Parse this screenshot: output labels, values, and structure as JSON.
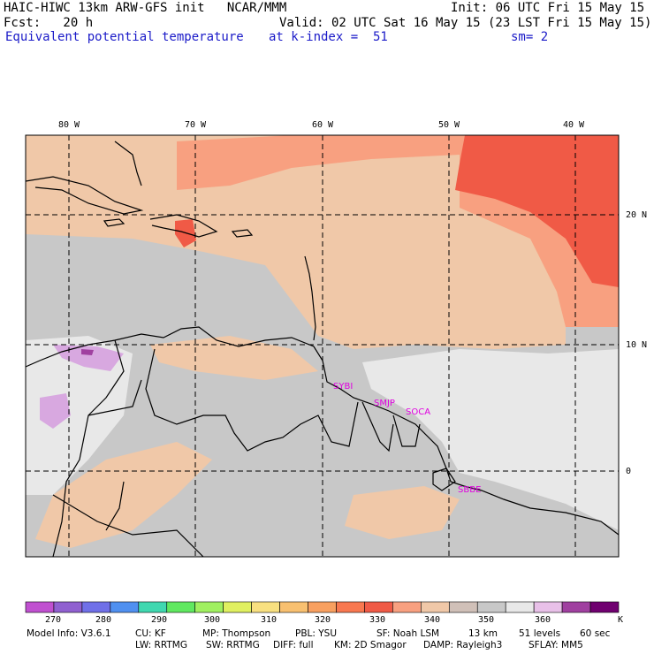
{
  "header": {
    "line1_left": "HAIC-HIWC 13km ARW-GFS init   NCAR/MMM",
    "line1_right": "Init: 06 UTC Fri 15 May 15",
    "line2_left": "Fcst:   20 h",
    "line2_right": "Valid: 02 UTC Sat 16 May 15 (23 LST Fri 15 May 15)",
    "line3_field": "Equivalent potential temperature",
    "line3_level": "at k-index =  51",
    "line3_smooth": "sm= 2"
  },
  "map": {
    "lon_labels": [
      "80 W",
      "70 W",
      "60 W",
      "50 W",
      "40 W"
    ],
    "lat_labels": [
      "20 N",
      "10 N",
      "0"
    ],
    "stations": [
      "SYBI",
      "SMJP",
      "SOCA",
      "SBBE"
    ],
    "colors": {
      "background_gray": "#c8c8c8",
      "light_gray": "#e8e8e8",
      "tan": "#f0c8a8",
      "salmon": "#f8a080",
      "red": "#f05a46",
      "lavender": "#d8a8e0",
      "coast": "#000000",
      "grid": "#000000"
    }
  },
  "colorbar": {
    "unit": "K",
    "labels": [
      "270",
      "280",
      "290",
      "300",
      "310",
      "320",
      "330",
      "340",
      "350",
      "360"
    ],
    "colors": [
      "#c050d0",
      "#9060d0",
      "#7070e8",
      "#5090f0",
      "#40d8b0",
      "#60e860",
      "#a0f060",
      "#e0f060",
      "#f8e080",
      "#f8c070",
      "#f8a060",
      "#f87850",
      "#f05a46",
      "#f8a080",
      "#f0c8a8",
      "#d0c0b8",
      "#c8c8c8",
      "#e8e8e8",
      "#e8c0e8",
      "#a040a0",
      "#700070"
    ]
  },
  "footer": {
    "row1": [
      "Model Info: V3.6.1",
      "CU: KF",
      "MP: Thompson",
      "PBL: YSU",
      "SF: Noah LSM",
      "13 km",
      "51 levels",
      "60 sec"
    ],
    "row2": [
      "LW: RRTMG",
      "SW: RRTMG",
      "DIFF: full",
      "KM: 2D Smagor",
      "DAMP: Rayleigh3",
      "SFLAY: MM5"
    ]
  }
}
